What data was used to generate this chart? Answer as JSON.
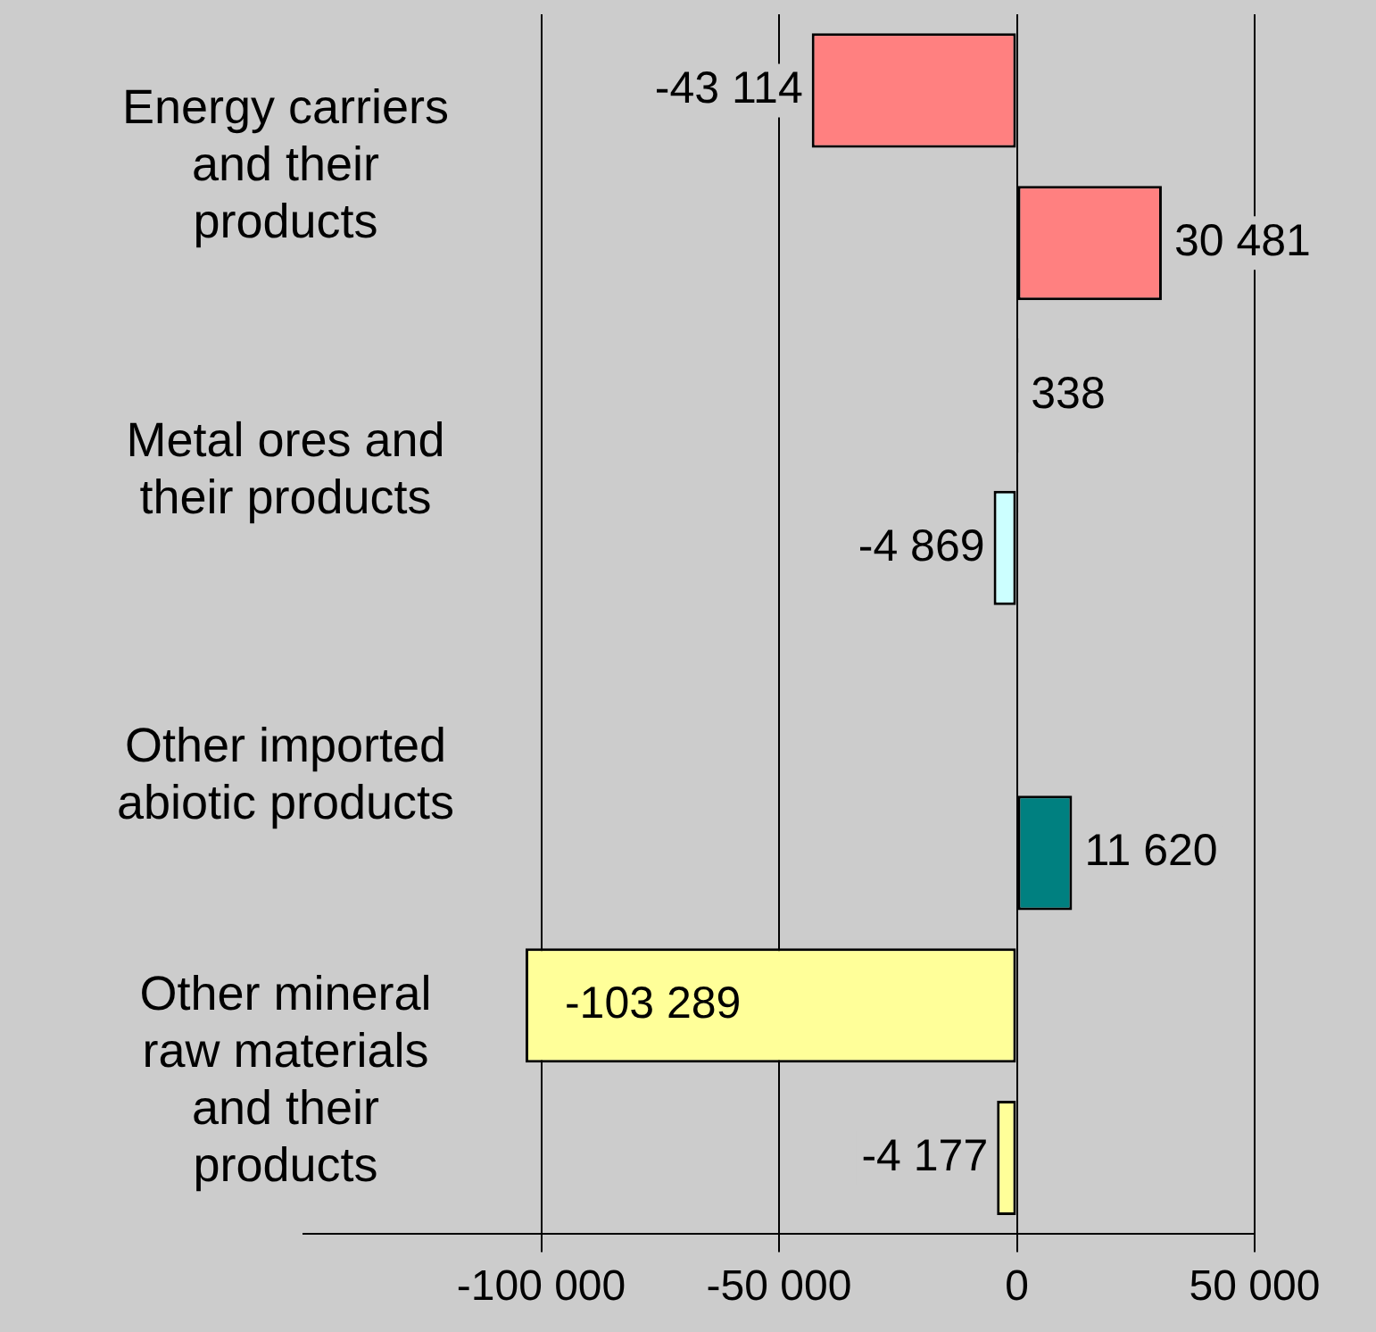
{
  "chart_data": {
    "type": "bar",
    "orientation": "horizontal",
    "categories": [
      "Energy carriers and their products",
      "Metal ores and their products",
      "Other imported abiotic products",
      "Other mineral raw materials and their products"
    ],
    "series": [
      {
        "colors": [
          "#ff8080",
          "#000000",
          null,
          "#ffff99"
        ],
        "values": [
          -43114,
          338,
          null,
          -103289
        ],
        "value_labels": [
          "-43 114",
          "338",
          null,
          "-103 289"
        ]
      },
      {
        "colors": [
          "#ff8080",
          "#ccffff",
          "#008080",
          "#ffff99"
        ],
        "values": [
          30481,
          -4869,
          11620,
          -4177
        ],
        "value_labels": [
          "30 481",
          "-4 869",
          "11 620",
          "-4 177"
        ]
      }
    ],
    "xlim": [
      -150000,
      50000
    ],
    "xticks": [
      {
        "value": -100000,
        "label": "-100 000"
      },
      {
        "value": -50000,
        "label": "-50 000"
      },
      0,
      {
        "value": 50000,
        "label": "50 000"
      }
    ],
    "grid": "x",
    "legend": false
  }
}
